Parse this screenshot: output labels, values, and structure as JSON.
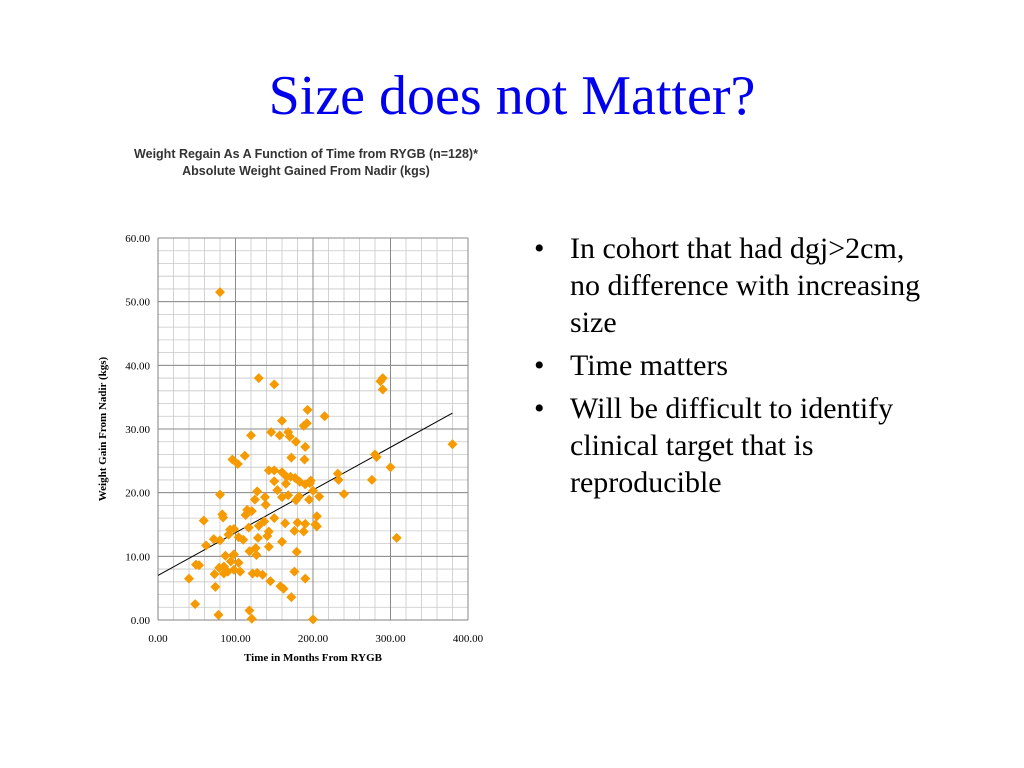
{
  "slide": {
    "title": "Size does not Matter?",
    "title_color": "#0000EE"
  },
  "bullets": [
    {
      "text": "In cohort that had dgj>2cm, no difference with increasing size"
    },
    {
      "text": "Time matters"
    },
    {
      "text": "Will be difficult to identify clinical target that is reproducible"
    }
  ],
  "bullet_symbol": "•",
  "chart_data": {
    "type": "scatter",
    "title": "Weight Regain As A Function of Time from RYGB (n=128)*",
    "subtitle": "Absolute Weight Gained From Nadir (kgs)",
    "xlabel": "Time in Months From RYGB",
    "ylabel": "Weight Gain From Nadir (kgs)",
    "xlim": [
      0,
      400
    ],
    "ylim": [
      0,
      60
    ],
    "x_ticks": [
      0,
      100,
      200,
      300,
      400
    ],
    "y_ticks": [
      0,
      10,
      20,
      30,
      40,
      50,
      60
    ],
    "x_tick_labels": [
      "0.00",
      "100.00",
      "200.00",
      "300.00",
      "400.00"
    ],
    "y_tick_labels": [
      "0.00",
      "10.00",
      "20.00",
      "30.00",
      "40.00",
      "50.00",
      "60.00"
    ],
    "grid": true,
    "minor_grid": true,
    "marker": "diamond",
    "marker_color": "#F59A00",
    "trendline": {
      "type": "linear",
      "x": [
        0,
        380
      ],
      "y": [
        7.0,
        32.5
      ],
      "color": "#000000"
    },
    "points": [
      [
        80,
        51.5
      ],
      [
        130,
        38
      ],
      [
        150,
        37
      ],
      [
        290,
        38
      ],
      [
        287,
        37.5
      ],
      [
        290,
        36.2
      ],
      [
        193,
        33
      ],
      [
        215,
        32
      ],
      [
        160,
        31.3
      ],
      [
        192,
        30.9
      ],
      [
        188,
        30.5
      ],
      [
        157,
        29
      ],
      [
        120,
        29
      ],
      [
        170,
        28.8
      ],
      [
        178,
        28
      ],
      [
        190,
        27.2
      ],
      [
        96,
        25.2
      ],
      [
        112,
        25.8
      ],
      [
        150,
        23.5
      ],
      [
        160,
        23.2
      ],
      [
        171,
        22.5
      ],
      [
        172,
        25.5
      ],
      [
        189,
        25.2
      ],
      [
        103,
        24.5
      ],
      [
        282,
        25.6
      ],
      [
        280,
        26
      ],
      [
        300,
        24
      ],
      [
        232,
        23
      ],
      [
        233,
        22
      ],
      [
        276,
        22
      ],
      [
        380,
        27.6
      ],
      [
        177,
        22.3
      ],
      [
        183,
        21.7
      ],
      [
        190,
        21.3
      ],
      [
        196,
        21.5
      ],
      [
        200,
        20.3
      ],
      [
        165,
        21.4
      ],
      [
        150,
        21.8
      ],
      [
        154,
        20.4
      ],
      [
        128,
        20.2
      ],
      [
        80,
        19.7
      ],
      [
        125,
        18.9
      ],
      [
        139,
        18.1
      ],
      [
        143,
        23.5
      ],
      [
        160,
        19.3
      ],
      [
        178,
        18.8
      ],
      [
        195,
        18.9
      ],
      [
        208,
        19.4
      ],
      [
        240,
        19.8
      ],
      [
        115,
        17.3
      ],
      [
        113,
        16.5
      ],
      [
        121,
        17.1
      ],
      [
        190,
        15.1
      ],
      [
        205,
        16.3
      ],
      [
        180,
        15.3
      ],
      [
        164,
        15.2
      ],
      [
        188,
        13.9
      ],
      [
        203,
        15
      ],
      [
        176,
        14
      ],
      [
        143,
        13.9
      ],
      [
        59,
        15.6
      ],
      [
        84,
        16.1
      ],
      [
        98,
        14.3
      ],
      [
        93,
        14.2
      ],
      [
        130,
        14.8
      ],
      [
        126,
        11.3
      ],
      [
        129,
        12.9
      ],
      [
        137,
        15.5
      ],
      [
        160,
        12.3
      ],
      [
        80,
        12.5
      ],
      [
        72,
        12.7
      ],
      [
        91,
        13.4
      ],
      [
        104,
        13
      ],
      [
        110,
        12.6
      ],
      [
        62,
        11.7
      ],
      [
        179,
        10.7
      ],
      [
        127,
        10.2
      ],
      [
        98,
        10.3
      ],
      [
        94,
        9.2
      ],
      [
        104,
        9
      ],
      [
        79,
        8.2
      ],
      [
        90,
        7.6
      ],
      [
        135,
        7.1
      ],
      [
        85,
        7.3
      ],
      [
        73,
        7.2
      ],
      [
        122,
        7.3
      ],
      [
        145,
        6.1
      ],
      [
        176,
        7.6
      ],
      [
        190,
        6.5
      ],
      [
        40,
        6.5
      ],
      [
        49,
        8.7
      ],
      [
        53,
        8.6
      ],
      [
        74,
        5.2
      ],
      [
        158,
        5.3
      ],
      [
        162,
        4.9
      ],
      [
        172,
        3.6
      ],
      [
        48,
        2.5
      ],
      [
        118,
        1.5
      ],
      [
        78,
        0.8
      ],
      [
        121,
        0.2
      ],
      [
        200,
        0.1
      ],
      [
        308,
        12.9
      ],
      [
        143,
        11.5
      ],
      [
        128,
        7.4
      ],
      [
        98,
        7.9
      ],
      [
        85,
        8.4
      ],
      [
        141,
        13.2
      ],
      [
        150,
        16
      ],
      [
        168,
        19.6
      ],
      [
        166,
        22.5
      ],
      [
        197,
        21.9
      ],
      [
        205,
        14.7
      ],
      [
        182,
        19.4
      ],
      [
        138,
        19.3
      ],
      [
        117,
        14.5
      ],
      [
        118,
        10.8
      ],
      [
        168,
        29.5
      ],
      [
        146,
        29.5
      ],
      [
        106,
        7.6
      ],
      [
        87,
        10.1
      ],
      [
        83,
        16.6
      ]
    ]
  }
}
